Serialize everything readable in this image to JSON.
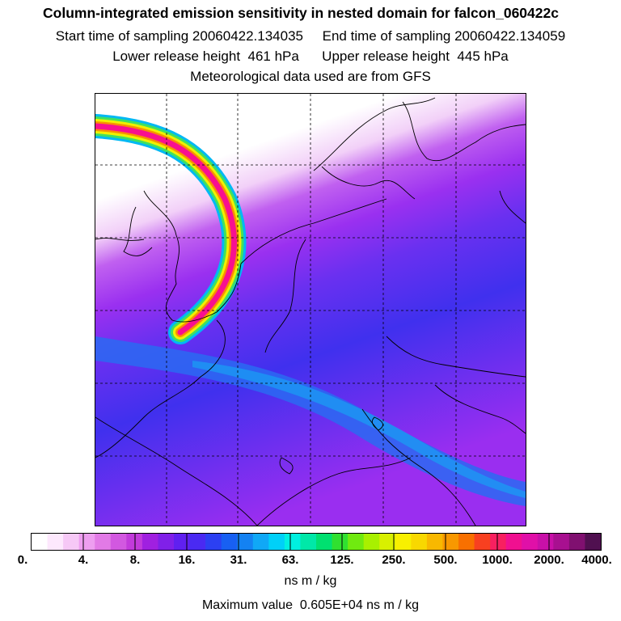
{
  "header": {
    "title": "Column-integrated emission sensitivity in nested domain for falcon_060422c",
    "sampling_line": "Start time of sampling 20060422.134035     End time of sampling 20060422.134059",
    "release_line": "Lower release height  461 hPa      Upper release height  445 hPa",
    "met_line": "Meteorological data used are from GFS"
  },
  "colors": {
    "scale": [
      "#ffffff",
      "#fde8fd",
      "#f6c8f6",
      "#ee9ef0",
      "#e27ae6",
      "#d258e0",
      "#c23adb",
      "#a020e0",
      "#8020e8",
      "#6020f0",
      "#4a2af2",
      "#2c40f2",
      "#1860f2",
      "#1482f2",
      "#10a8f6",
      "#00d0f8",
      "#00f0e0",
      "#00e8a8",
      "#00e070",
      "#30e030",
      "#70ea10",
      "#a8f000",
      "#d8f000",
      "#f8f000",
      "#f8d800",
      "#f8b800",
      "#f89800",
      "#f87000",
      "#f84020",
      "#f82060",
      "#f01090",
      "#e010a8",
      "#c810a8",
      "#a81090",
      "#801070",
      "#501050"
    ],
    "background_mid": "#a040f0",
    "background_low": "#3040f0",
    "land_line": "#000000"
  },
  "colorbar": {
    "ticks": [
      "0.",
      "4.",
      "8.",
      "16.",
      "31.",
      "63.",
      "125.",
      "250.",
      "500.",
      "1000.",
      "2000.",
      "4000."
    ],
    "unit": "ns m / kg"
  },
  "footer": {
    "max_value": "Maximum value  0.605E+04 ns m / kg"
  }
}
